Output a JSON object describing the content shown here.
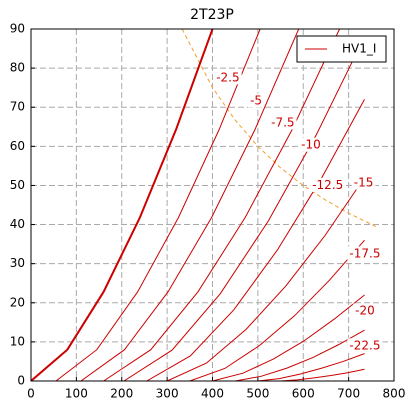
{
  "chart_data": {
    "type": "line",
    "title": "2T23P",
    "legend": "HV1_I",
    "legend_corner": "upper right",
    "grid": true,
    "xlim": [
      0,
      800
    ],
    "xticks": [
      0,
      100,
      200,
      300,
      400,
      500,
      600,
      700,
      800
    ],
    "ylim": [
      0,
      90
    ],
    "yticks": [
      0,
      10,
      20,
      30,
      40,
      50,
      60,
      70,
      80,
      90
    ],
    "series": [
      {
        "color": "#cc0000",
        "x": [
          0,
          80,
          160,
          240,
          320,
          400
        ],
        "values": [
          0,
          8.0,
          22.8,
          41.8,
          64.4,
          90
        ]
      },
      {
        "label": "-2.5",
        "color": "#cc0000",
        "x": [
          55,
          145,
          235,
          325,
          415,
          505
        ],
        "values": [
          0,
          8.0,
          22.8,
          41.8,
          64.4,
          90
        ]
      },
      {
        "label": "-5",
        "color": "#cc0000",
        "x": [
          110,
          206,
          302,
          398,
          494,
          590
        ],
        "values": [
          0,
          8.0,
          22.8,
          41.8,
          64.4,
          90
        ]
      },
      {
        "label": "-7.5",
        "color": "#cc0000",
        "x": [
          160,
          264,
          368,
          472,
          576,
          680
        ],
        "values": [
          0,
          8.0,
          22.8,
          41.8,
          64.4,
          90
        ]
      },
      {
        "label": "-10",
        "color": "#cc0000",
        "x": [
          205,
          311,
          417,
          523,
          629,
          735
        ],
        "values": [
          0,
          7.9,
          22.3,
          40.9,
          63.0,
          88
        ]
      },
      {
        "label": "-12.5",
        "color": "#cc0000",
        "x": [
          255,
          351,
          447,
          543,
          639,
          735
        ],
        "values": [
          0,
          6.4,
          18.2,
          33.5,
          51.6,
          72
        ]
      },
      {
        "label": "-15",
        "color": "#cc0000",
        "x": [
          300,
          387,
          474,
          561,
          648,
          735
        ],
        "values": [
          0,
          4.6,
          13.2,
          24.2,
          37.2,
          52
        ]
      },
      {
        "label": "-17.5",
        "color": "#cc0000",
        "x": [
          350,
          427,
          504,
          581,
          658,
          735
        ],
        "values": [
          0,
          3.2,
          9.1,
          16.7,
          25.8,
          36
        ]
      },
      {
        "label": "-20",
        "color": "#cc0000",
        "x": [
          400,
          467,
          534,
          601,
          668,
          735
        ],
        "values": [
          0,
          2.0,
          5.6,
          10.2,
          15.8,
          22
        ]
      },
      {
        "label": "-22.5",
        "color": "#cc0000",
        "x": [
          450,
          507,
          564,
          621,
          678,
          735
        ],
        "values": [
          0,
          1.2,
          3.3,
          6.0,
          9.3,
          13
        ]
      },
      {
        "color": "#cc0000",
        "x": [
          500,
          547,
          594,
          641,
          688,
          735
        ],
        "values": [
          0,
          0.6,
          1.8,
          3.3,
          5.0,
          7
        ]
      },
      {
        "color": "#cc0000",
        "x": [
          550,
          587,
          624,
          661,
          698,
          735
        ],
        "values": [
          0,
          0.3,
          0.8,
          1.4,
          2.1,
          3
        ]
      }
    ],
    "limit_curve": {
      "color": "#f0a030",
      "x": [
        333,
        400,
        450,
        500,
        550,
        600,
        650,
        700,
        760
      ],
      "values": [
        90,
        75,
        66.7,
        60,
        54.5,
        50,
        46.2,
        42.9,
        39.5
      ]
    }
  }
}
